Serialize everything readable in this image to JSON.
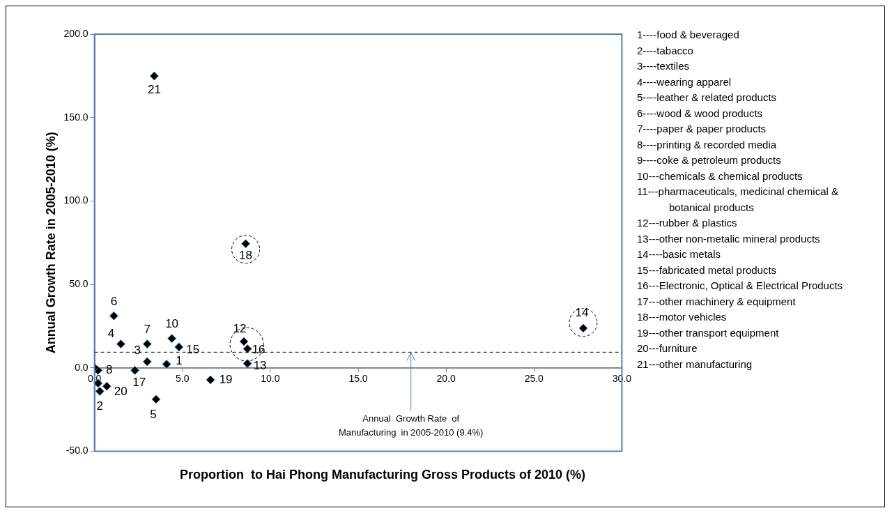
{
  "chart_data": {
    "type": "scatter",
    "xlabel": "Proportion  to Hai Phong Manufacturing Gross Products of 2010 (%)",
    "ylabel": "Annual Growth Rate in 2005-2010 (%)",
    "series": [
      {
        "color": "#000000",
        "x": [
          4.1,
          0.3,
          3.0,
          1.5,
          3.5,
          1.1,
          3.0,
          0.2,
          0.0,
          4.4,
          0.2,
          8.5,
          8.7,
          27.8,
          4.8,
          8.7,
          2.3,
          8.6,
          6.6,
          0.7,
          3.4
        ],
        "values": [
          2.2,
          -14.0,
          3.7,
          14.3,
          -18.8,
          31.2,
          14.3,
          -1.5,
          0.2,
          17.6,
          -9.2,
          15.8,
          2.6,
          23.8,
          12.5,
          11.4,
          -1.5,
          74.4,
          -7.2,
          -11.0,
          174.9
        ]
      }
    ],
    "marker": "diamond",
    "grid": false,
    "legend": false,
    "xlim": [
      0,
      30
    ],
    "xticks": [
      {
        "value": 0,
        "label": "0.0"
      },
      {
        "value": 5,
        "label": "5.0"
      },
      {
        "value": 10,
        "label": "10.0"
      },
      {
        "value": 15,
        "label": "15.0"
      },
      {
        "value": 20,
        "label": "20.0"
      },
      {
        "value": 25,
        "label": "25.0"
      },
      {
        "value": 30,
        "label": "30.0"
      }
    ],
    "ylim": [
      -50,
      200
    ],
    "yticks": [
      {
        "value": -50,
        "label": "-50.0"
      },
      {
        "value": 0,
        "label": "0.0"
      },
      {
        "value": 50,
        "label": "50.0"
      },
      {
        "value": 100,
        "label": "100.0"
      },
      {
        "value": 150,
        "label": "150.0"
      },
      {
        "value": 200,
        "label": "200.0"
      }
    ],
    "ref_lines": [
      {
        "axis": "y",
        "value": 9.4,
        "label": "Annual  Growth Rate  of\nManufacturing  in 2005-2010 (9.4%)",
        "line_style": "dashed",
        "color": "#000000"
      }
    ],
    "annotations": [
      {
        "text": "1",
        "x": 4.1,
        "y": 2.2
      },
      {
        "text": "2",
        "x": 0.3,
        "y": -14.0
      },
      {
        "text": "3",
        "x": 3.0,
        "y": 3.7
      },
      {
        "text": "4",
        "x": 1.5,
        "y": 14.3
      },
      {
        "text": "5",
        "x": 3.5,
        "y": -18.8
      },
      {
        "text": "6",
        "x": 1.1,
        "y": 31.2
      },
      {
        "text": "7",
        "x": 3.0,
        "y": 14.3
      },
      {
        "text": "8",
        "x": 0.2,
        "y": -1.5
      },
      {
        "text": "10",
        "x": 4.4,
        "y": 17.6
      },
      {
        "text": "12",
        "x": 8.5,
        "y": 15.8
      },
      {
        "text": "13",
        "x": 8.7,
        "y": 2.6
      },
      {
        "text": "14",
        "x": 27.8,
        "y": 23.8
      },
      {
        "text": "15",
        "x": 4.8,
        "y": 12.5
      },
      {
        "text": "16",
        "x": 8.7,
        "y": 11.4
      },
      {
        "text": "17",
        "x": 2.3,
        "y": -1.5
      },
      {
        "text": "18",
        "x": 8.6,
        "y": 74.4
      },
      {
        "text": "19",
        "x": 6.6,
        "y": -7.2
      },
      {
        "text": "20",
        "x": 0.7,
        "y": -11.0
      },
      {
        "text": "21",
        "x": 3.4,
        "y": 174.9
      },
      "1----food & beveraged",
      "2----tabacco",
      "3----textiles",
      "4----wearing apparel",
      "5----leather & related products",
      "6----wood & wood products",
      "7----paper & paper products",
      "8----printing & recorded media",
      "9----coke & petroleum products",
      "10---chemicals & chemical products",
      "11---pharmaceuticals, medicinal chemical & botanical products",
      "12---rubber & plastics",
      "13---other non-metalic mineral products",
      "14----basic metals",
      "15---fabricated metal products",
      "16---Electronic, Optical & Electrical Products",
      "17---other machinery & equipment",
      "18---motor vehicles",
      "19---other transport equipment",
      "20---furniture",
      "21---other manufacturing"
    ]
  }
}
